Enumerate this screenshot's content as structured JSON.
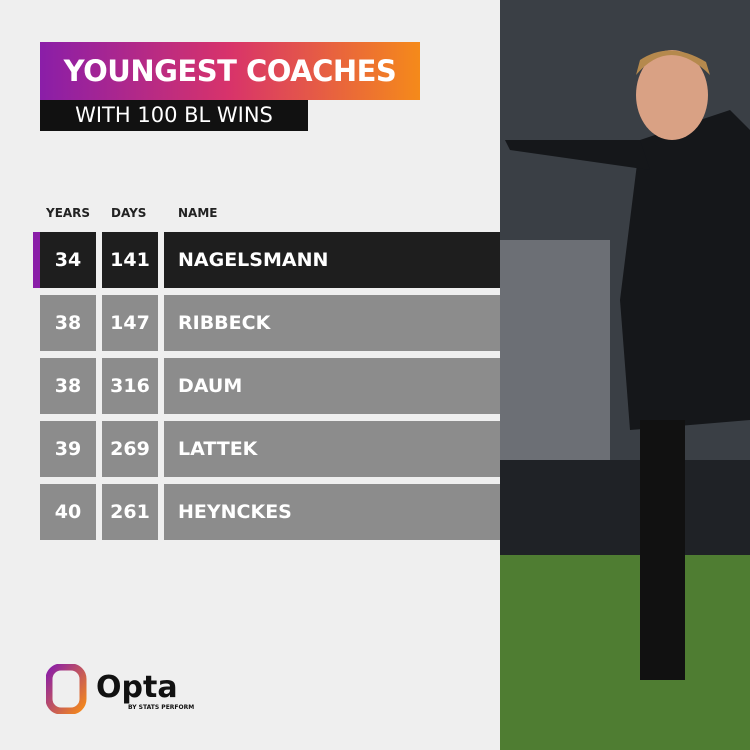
{
  "header": {
    "title": "YOUNGEST COACHES",
    "subtitle": "WITH 100 BL WINS"
  },
  "table": {
    "columns": [
      "YEARS",
      "DAYS",
      "NAME"
    ],
    "rows": [
      [
        34,
        141,
        "NAGELSMANN"
      ],
      [
        38,
        147,
        "RIBBECK"
      ],
      [
        38,
        316,
        "DAUM"
      ],
      [
        39,
        269,
        "LATTEK"
      ],
      [
        40,
        261,
        "HEYNCKES"
      ]
    ]
  },
  "logo": {
    "name": "Opta",
    "tagline": "BY STATS PERFORM"
  }
}
